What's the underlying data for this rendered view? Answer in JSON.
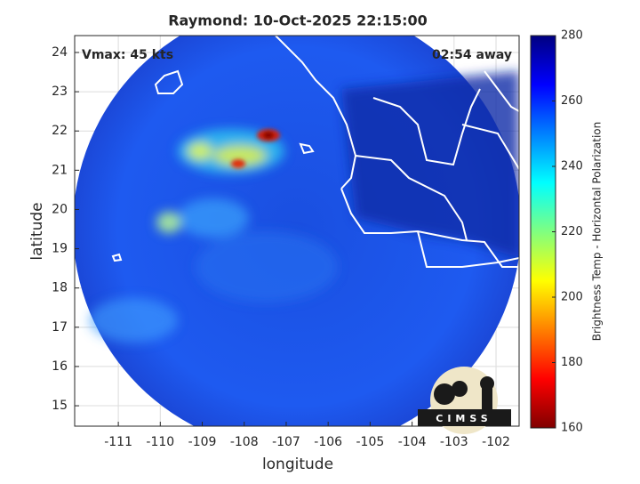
{
  "chart_data": {
    "type": "map",
    "title": "Raymond: 10-Oct-2025 22:15:00",
    "annotation_left": "Vmax: 45 kts",
    "annotation_right": "02:54 away",
    "xlabel": "longitude",
    "ylabel": "latitude",
    "xlim": [
      -112.04,
      -101.45
    ],
    "ylim": [
      14.48,
      24.43
    ],
    "xticks": [
      -111,
      -110,
      -109,
      -108,
      -107,
      -106,
      -105,
      -104,
      -103,
      -102
    ],
    "yticks": [
      15,
      16,
      17,
      18,
      19,
      20,
      21,
      22,
      23,
      24
    ],
    "grid": true,
    "colorbar": {
      "label": "Brightness Temp - Horizontal Polarization",
      "lim": [
        160,
        280
      ],
      "ticks": [
        160,
        180,
        200,
        220,
        240,
        260,
        280
      ],
      "colormap": "jet"
    },
    "logo_text": "CIMSS"
  }
}
